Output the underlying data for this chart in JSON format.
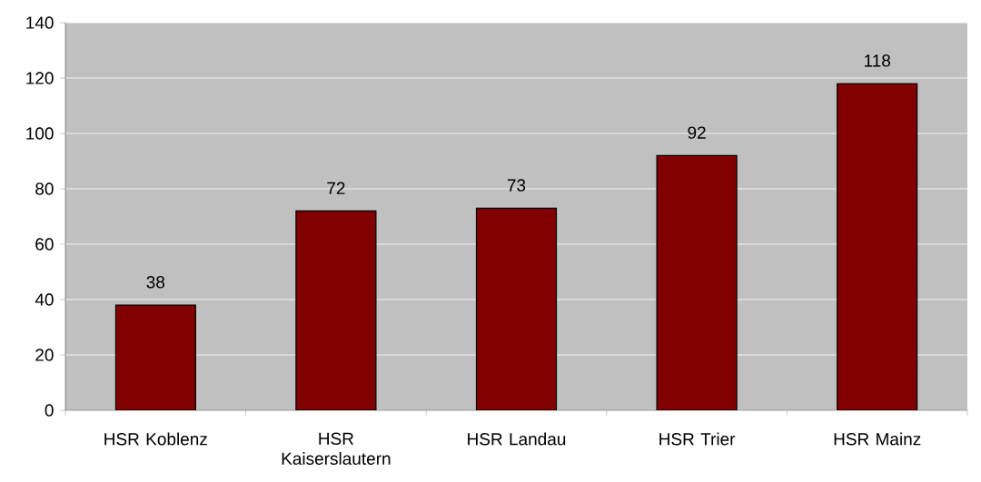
{
  "chart_data": {
    "type": "bar",
    "categories": [
      "HSR Koblenz",
      "HSR Kaiserslautern",
      "HSR Landau",
      "HSR Trier",
      "HSR Mainz"
    ],
    "values": [
      38,
      72,
      73,
      92,
      118
    ],
    "color": "#800000",
    "ylim": [
      0,
      140
    ],
    "yticks": [
      0,
      20,
      40,
      60,
      80,
      100,
      120,
      140
    ],
    "grid": "y",
    "data_labels": true,
    "legend": false
  }
}
